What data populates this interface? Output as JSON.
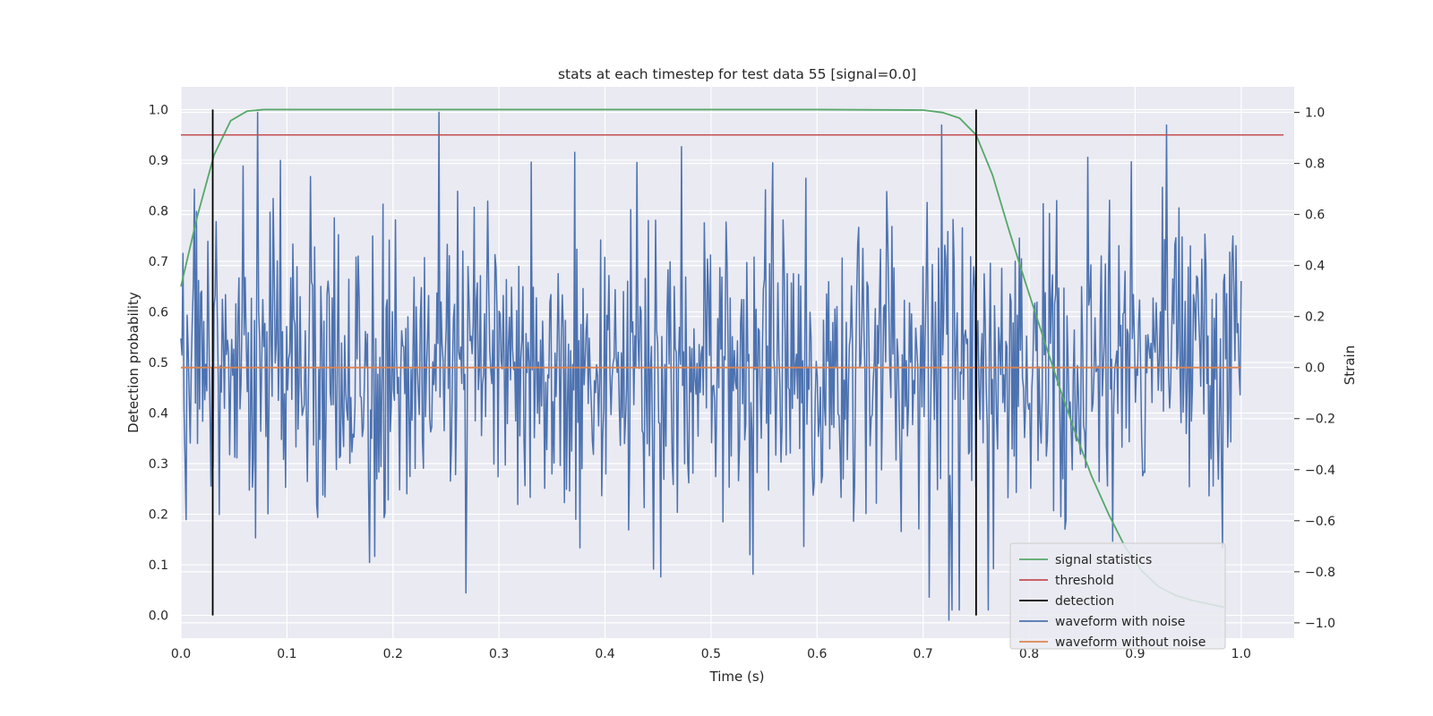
{
  "chart_data": {
    "type": "line",
    "title": "stats at each timestep for test data 55 [signal=0.0]",
    "xlabel": "Time (s)",
    "ylabel_left": "Detection probability",
    "ylabel_right": "Strain",
    "xlim": [
      0.0,
      1.05
    ],
    "ylim_left": [
      -0.045,
      1.045
    ],
    "ylim_right": [
      -1.06,
      1.1
    ],
    "x_ticks": [
      "0.0",
      "0.1",
      "0.2",
      "0.3",
      "0.4",
      "0.5",
      "0.6",
      "0.7",
      "0.8",
      "0.9",
      "1.0"
    ],
    "y_left_ticks": [
      "0.0",
      "0.1",
      "0.2",
      "0.3",
      "0.4",
      "0.5",
      "0.6",
      "0.7",
      "0.8",
      "0.9",
      "1.0"
    ],
    "y_right_ticks": [
      "−1.0",
      "−0.8",
      "−0.6",
      "−0.4",
      "−0.2",
      "0.0",
      "0.2",
      "0.4",
      "0.6",
      "0.8",
      "1.0"
    ],
    "grid": true,
    "legend_position": "lower-right",
    "series": [
      {
        "name": "signal statistics",
        "color": "#55a868",
        "axis": "left",
        "x": [
          0.0,
          0.0156,
          0.03125,
          0.0469,
          0.0625,
          0.078,
          0.1,
          0.2,
          0.3,
          0.4,
          0.5,
          0.6,
          0.7,
          0.71875,
          0.7344,
          0.75,
          0.7656,
          0.78125,
          0.797,
          0.8125,
          0.828,
          0.84375,
          0.859,
          0.875,
          0.8906,
          0.90625,
          0.922,
          0.9375,
          0.953,
          0.96875,
          0.984
        ],
        "y": [
          0.65,
          0.79,
          0.91,
          0.978,
          0.997,
          1.0,
          1.0,
          1.0,
          1.0,
          1.0,
          1.0,
          1.0,
          0.999,
          0.994,
          0.983,
          0.95,
          0.87,
          0.76,
          0.655,
          0.555,
          0.455,
          0.36,
          0.275,
          0.2,
          0.135,
          0.088,
          0.057,
          0.04,
          0.03,
          0.023,
          0.016
        ]
      },
      {
        "name": "threshold",
        "color": "#c44e52",
        "axis": "left",
        "x": [
          0.0,
          1.04
        ],
        "y": [
          0.95,
          0.95
        ]
      },
      {
        "name": "detection",
        "color": "#000000",
        "axis": "left",
        "segments": [
          {
            "x": 0.03,
            "y0": 0.0,
            "y1": 1.0
          },
          {
            "x": 0.75,
            "y0": 0.0,
            "y1": 1.0
          }
        ]
      },
      {
        "name": "waveform with noise",
        "color": "#4c72b0",
        "axis": "right",
        "generated": true,
        "x_start": 0.0,
        "x_end": 1.0,
        "sample_count": 1024,
        "y_range": [
          -0.99,
          1.0
        ],
        "spikes": [
          {
            "x": 0.072,
            "y": 1.0
          },
          {
            "x": 0.243,
            "y": 1.0
          },
          {
            "x": 0.724,
            "y": -0.99
          },
          {
            "x": 0.453,
            "y": -0.82
          },
          {
            "x": 0.54,
            "y": -0.81
          },
          {
            "x": 0.183,
            "y": -0.74
          }
        ]
      },
      {
        "name": "waveform without noise",
        "color": "#dd8452",
        "axis": "right",
        "x": [
          0.0,
          1.0
        ],
        "y": [
          0.0,
          0.0
        ]
      }
    ]
  }
}
